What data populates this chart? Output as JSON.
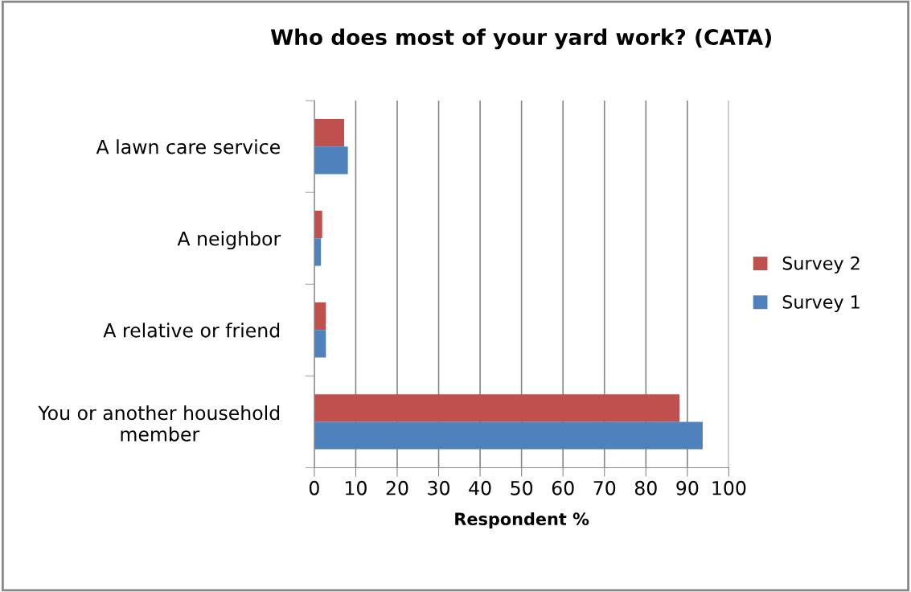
{
  "chart_data": {
    "type": "bar",
    "orientation": "horizontal",
    "title": "Who does most of your yard work? (CATA)",
    "xlabel": "Respondent %",
    "categories": [
      "A lawn care service",
      "A neighbor",
      "A relative or friend",
      "You or another household member"
    ],
    "series": [
      {
        "name": "Survey 2",
        "color": "#c0504d",
        "values": [
          7.2,
          1.9,
          2.8,
          88.1
        ]
      },
      {
        "name": "Survey 1",
        "color": "#4f81bd",
        "values": [
          8.1,
          1.6,
          2.8,
          93.7
        ]
      }
    ],
    "xlim": [
      0,
      100
    ],
    "xticks": [
      0,
      10,
      20,
      30,
      40,
      50,
      60,
      70,
      80,
      90,
      100
    ],
    "grid": "x",
    "legend": "right"
  }
}
